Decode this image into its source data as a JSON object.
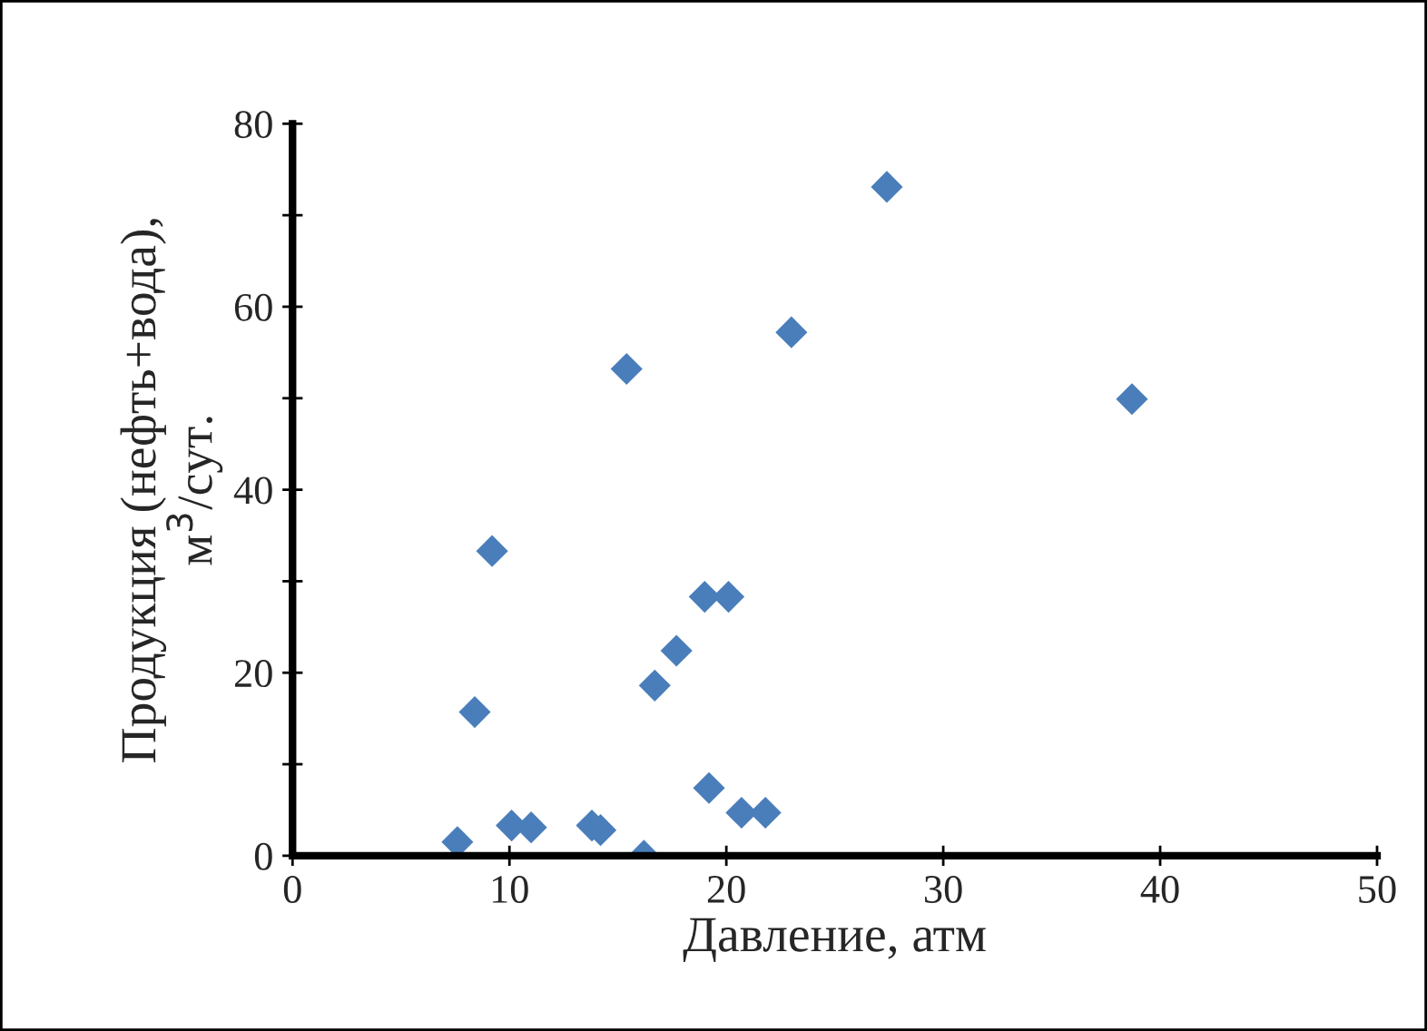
{
  "chart_data": {
    "type": "scatter",
    "xlabel": "Давление, атм",
    "ylabel": "Продукция (нефть+вода),\nм$^{3}$/сут.",
    "x": [
      7.6,
      8.4,
      9.2,
      10.1,
      11.0,
      13.8,
      14.2,
      15.4,
      16.2,
      16.7,
      17.7,
      19.0,
      20.1,
      19.2,
      20.7,
      21.8,
      23.0,
      27.4,
      38.7
    ],
    "series": [
      {
        "color": "#4a7ebb",
        "values": [
          1.5,
          15.7,
          33.3,
          3.3,
          3.1,
          3.3,
          2.8,
          53.2,
          0,
          18.6,
          22.4,
          28.3,
          28.3,
          7.4,
          4.7,
          4.7,
          57.2,
          73.1,
          49.9
        ]
      }
    ],
    "marker": "diamond",
    "xlim": [
      0,
      50
    ],
    "xticks": [
      0,
      10,
      20,
      30,
      40,
      50
    ],
    "ylim": [
      0,
      80
    ],
    "yticks": [
      0,
      {
        "value": 10,
        "label": null
      },
      20,
      {
        "value": 30,
        "label": null
      },
      40,
      {
        "value": 50,
        "label": null
      },
      60,
      {
        "value": 70,
        "label": null
      },
      80
    ],
    "grid": false,
    "legend": false
  }
}
